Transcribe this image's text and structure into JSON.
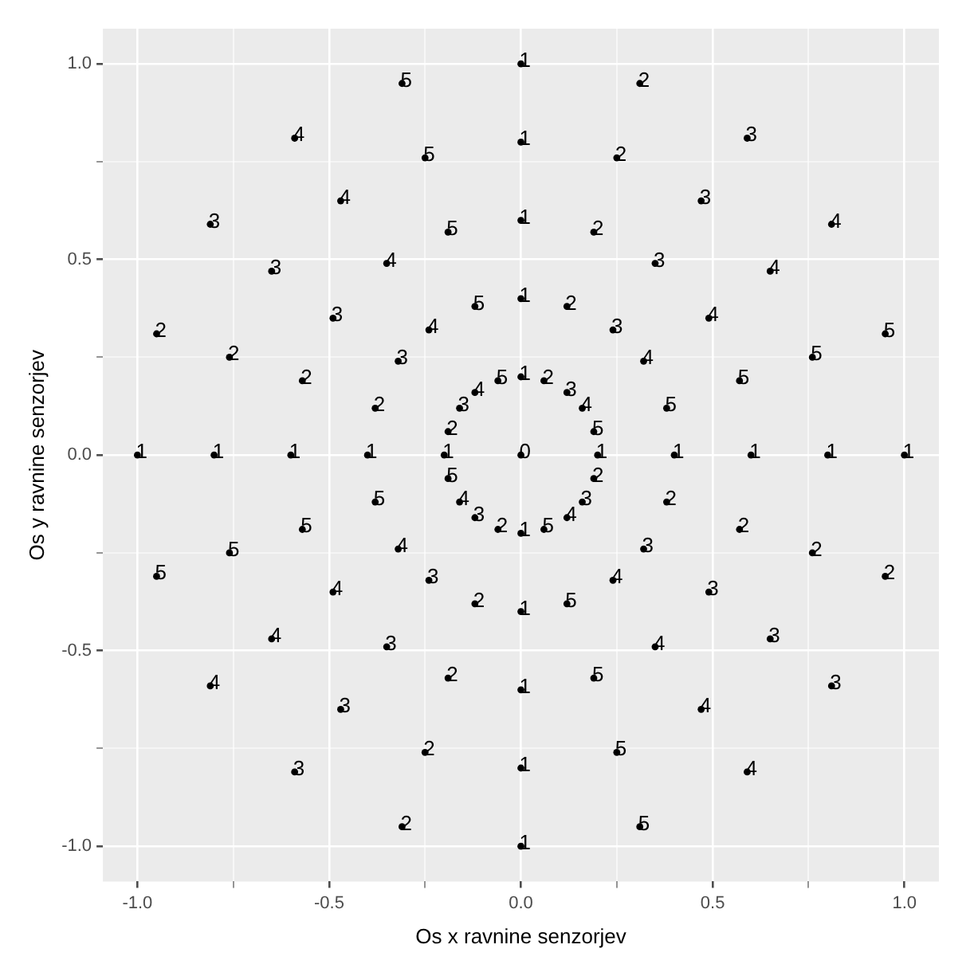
{
  "chart_data": {
    "type": "scatter",
    "xlabel": "Os x ravnine senzorjev",
    "ylabel": "Os y ravnine senzorjev",
    "marker": "circle",
    "grid": true,
    "xlim": [
      -1.09,
      1.09
    ],
    "ylim": [
      -1.09,
      1.09
    ],
    "xticks": [
      {
        "value": -1,
        "label": "-1.0"
      },
      {
        "value": -0.75,
        "label": null
      },
      -0.5,
      {
        "value": -0.25,
        "label": null
      },
      {
        "value": 0,
        "label": "0.0"
      },
      {
        "value": 0.25,
        "label": null
      },
      0.5,
      {
        "value": 0.75,
        "label": null
      },
      {
        "value": 1,
        "label": "1.0"
      }
    ],
    "yticks": [
      {
        "value": -1,
        "label": "-1.0"
      },
      {
        "value": -0.75,
        "label": null
      },
      -0.5,
      {
        "value": -0.25,
        "label": null
      },
      {
        "value": 0,
        "label": "0.0"
      },
      {
        "value": 0.25,
        "label": null
      },
      0.5,
      {
        "value": 0.75,
        "label": null
      },
      {
        "value": 1,
        "label": "1.0"
      }
    ],
    "series": [
      {
        "color": "#000000",
        "x": [
          0
        ],
        "values": [
          0
        ]
      },
      {
        "color": "#000000",
        "x": [
          0,
          0.06,
          0.12,
          0.16,
          0.19,
          0.2,
          0.19,
          0.16,
          0.12,
          0.06,
          0,
          -0.06,
          -0.12,
          -0.16,
          -0.19,
          -0.2,
          -0.19,
          -0.16,
          -0.12,
          -0.06
        ],
        "values": [
          0.2,
          0.19,
          0.16,
          0.12,
          0.06,
          0,
          -0.06,
          -0.12,
          -0.16,
          -0.19,
          -0.2,
          -0.19,
          -0.16,
          -0.12,
          -0.06,
          0,
          0.06,
          0.12,
          0.16,
          0.19
        ]
      },
      {
        "color": "#000000",
        "x": [
          0,
          0.12,
          0.24,
          0.32,
          0.38,
          0.4,
          0.38,
          0.32,
          0.24,
          0.12,
          0,
          -0.12,
          -0.24,
          -0.32,
          -0.38,
          -0.4,
          -0.38,
          -0.32,
          -0.24,
          -0.12
        ],
        "values": [
          0.4,
          0.38,
          0.32,
          0.24,
          0.12,
          0,
          -0.12,
          -0.24,
          -0.32,
          -0.38,
          -0.4,
          -0.38,
          -0.32,
          -0.24,
          -0.12,
          0,
          0.12,
          0.24,
          0.32,
          0.38
        ]
      },
      {
        "color": "#000000",
        "x": [
          0,
          0.19,
          0.35,
          0.49,
          0.57,
          0.6,
          0.57,
          0.49,
          0.35,
          0.19,
          0,
          -0.19,
          -0.35,
          -0.49,
          -0.57,
          -0.6,
          -0.57,
          -0.49,
          -0.35,
          -0.19
        ],
        "values": [
          0.6,
          0.57,
          0.49,
          0.35,
          0.19,
          0,
          -0.19,
          -0.35,
          -0.49,
          -0.57,
          -0.6,
          -0.57,
          -0.49,
          -0.35,
          -0.19,
          0,
          0.19,
          0.35,
          0.49,
          0.57
        ]
      },
      {
        "color": "#000000",
        "x": [
          0,
          0.25,
          0.47,
          0.65,
          0.76,
          0.8,
          0.76,
          0.65,
          0.47,
          0.25,
          0,
          -0.25,
          -0.47,
          -0.65,
          -0.76,
          -0.8,
          -0.76,
          -0.65,
          -0.47,
          -0.25
        ],
        "values": [
          0.8,
          0.76,
          0.65,
          0.47,
          0.25,
          0,
          -0.25,
          -0.47,
          -0.65,
          -0.76,
          -0.8,
          -0.76,
          -0.65,
          -0.47,
          -0.25,
          0,
          0.25,
          0.47,
          0.65,
          0.76
        ]
      },
      {
        "color": "#000000",
        "x": [
          0,
          0.31,
          0.59,
          0.81,
          0.95,
          1,
          0.95,
          0.81,
          0.59,
          0.31,
          0,
          -0.31,
          -0.59,
          -0.81,
          -0.95,
          -1,
          -0.95,
          -0.81,
          -0.59,
          -0.31
        ],
        "values": [
          1,
          0.95,
          0.81,
          0.59,
          0.31,
          0,
          -0.31,
          -0.59,
          -0.81,
          -0.95,
          -1,
          -0.95,
          -0.81,
          -0.59,
          -0.31,
          0,
          0.31,
          0.59,
          0.81,
          0.95
        ]
      }
    ],
    "annotations": [
      {
        "text": "0",
        "x": 0,
        "y": 0
      },
      {
        "text": "1",
        "x": 0,
        "y": 0.2
      },
      {
        "text": "2",
        "x": 0.06,
        "y": 0.19
      },
      {
        "text": "3",
        "x": 0.12,
        "y": 0.16
      },
      {
        "text": "4",
        "x": 0.16,
        "y": 0.12
      },
      {
        "text": "5",
        "x": 0.19,
        "y": 0.06
      },
      {
        "text": "1",
        "x": 0.2,
        "y": 0
      },
      {
        "text": "2",
        "x": 0.19,
        "y": -0.06
      },
      {
        "text": "3",
        "x": 0.16,
        "y": -0.12
      },
      {
        "text": "4",
        "x": 0.12,
        "y": -0.16
      },
      {
        "text": "5",
        "x": 0.06,
        "y": -0.19
      },
      {
        "text": "1",
        "x": 0,
        "y": -0.2
      },
      {
        "text": "2",
        "x": -0.06,
        "y": -0.19
      },
      {
        "text": "3",
        "x": -0.12,
        "y": -0.16
      },
      {
        "text": "4",
        "x": -0.16,
        "y": -0.12
      },
      {
        "text": "5",
        "x": -0.19,
        "y": -0.06
      },
      {
        "text": "1",
        "x": -0.2,
        "y": 0
      },
      {
        "text": "2",
        "x": -0.19,
        "y": 0.06
      },
      {
        "text": "3",
        "x": -0.16,
        "y": 0.12
      },
      {
        "text": "4",
        "x": -0.12,
        "y": 0.16
      },
      {
        "text": "5",
        "x": -0.06,
        "y": 0.19
      },
      {
        "text": "1",
        "x": 0,
        "y": 0.4
      },
      {
        "text": "2",
        "x": 0.12,
        "y": 0.38
      },
      {
        "text": "3",
        "x": 0.24,
        "y": 0.32
      },
      {
        "text": "4",
        "x": 0.32,
        "y": 0.24
      },
      {
        "text": "5",
        "x": 0.38,
        "y": 0.12
      },
      {
        "text": "1",
        "x": 0.4,
        "y": 0
      },
      {
        "text": "2",
        "x": 0.38,
        "y": -0.12
      },
      {
        "text": "3",
        "x": 0.32,
        "y": -0.24
      },
      {
        "text": "4",
        "x": 0.24,
        "y": -0.32
      },
      {
        "text": "5",
        "x": 0.12,
        "y": -0.38
      },
      {
        "text": "1",
        "x": 0,
        "y": -0.4
      },
      {
        "text": "2",
        "x": -0.12,
        "y": -0.38
      },
      {
        "text": "3",
        "x": -0.24,
        "y": -0.32
      },
      {
        "text": "4",
        "x": -0.32,
        "y": -0.24
      },
      {
        "text": "5",
        "x": -0.38,
        "y": -0.12
      },
      {
        "text": "1",
        "x": -0.4,
        "y": 0
      },
      {
        "text": "2",
        "x": -0.38,
        "y": 0.12
      },
      {
        "text": "3",
        "x": -0.32,
        "y": 0.24
      },
      {
        "text": "4",
        "x": -0.24,
        "y": 0.32
      },
      {
        "text": "5",
        "x": -0.12,
        "y": 0.38
      },
      {
        "text": "1",
        "x": 0,
        "y": 0.6
      },
      {
        "text": "2",
        "x": 0.19,
        "y": 0.57
      },
      {
        "text": "3",
        "x": 0.35,
        "y": 0.49
      },
      {
        "text": "4",
        "x": 0.49,
        "y": 0.35
      },
      {
        "text": "5",
        "x": 0.57,
        "y": 0.19
      },
      {
        "text": "1",
        "x": 0.6,
        "y": 0
      },
      {
        "text": "2",
        "x": 0.57,
        "y": -0.19
      },
      {
        "text": "3",
        "x": 0.49,
        "y": -0.35
      },
      {
        "text": "4",
        "x": 0.35,
        "y": -0.49
      },
      {
        "text": "5",
        "x": 0.19,
        "y": -0.57
      },
      {
        "text": "1",
        "x": 0,
        "y": -0.6
      },
      {
        "text": "2",
        "x": -0.19,
        "y": -0.57
      },
      {
        "text": "3",
        "x": -0.35,
        "y": -0.49
      },
      {
        "text": "4",
        "x": -0.49,
        "y": -0.35
      },
      {
        "text": "5",
        "x": -0.57,
        "y": -0.19
      },
      {
        "text": "1",
        "x": -0.6,
        "y": 0
      },
      {
        "text": "2",
        "x": -0.57,
        "y": 0.19
      },
      {
        "text": "3",
        "x": -0.49,
        "y": 0.35
      },
      {
        "text": "4",
        "x": -0.35,
        "y": 0.49
      },
      {
        "text": "5",
        "x": -0.19,
        "y": 0.57
      },
      {
        "text": "1",
        "x": 0,
        "y": 0.8
      },
      {
        "text": "2",
        "x": 0.25,
        "y": 0.76
      },
      {
        "text": "3",
        "x": 0.47,
        "y": 0.65
      },
      {
        "text": "4",
        "x": 0.65,
        "y": 0.47
      },
      {
        "text": "5",
        "x": 0.76,
        "y": 0.25
      },
      {
        "text": "1",
        "x": 0.8,
        "y": 0
      },
      {
        "text": "2",
        "x": 0.76,
        "y": -0.25
      },
      {
        "text": "3",
        "x": 0.65,
        "y": -0.47
      },
      {
        "text": "4",
        "x": 0.47,
        "y": -0.65
      },
      {
        "text": "5",
        "x": 0.25,
        "y": -0.76
      },
      {
        "text": "1",
        "x": 0,
        "y": -0.8
      },
      {
        "text": "2",
        "x": -0.25,
        "y": -0.76
      },
      {
        "text": "3",
        "x": -0.47,
        "y": -0.65
      },
      {
        "text": "4",
        "x": -0.65,
        "y": -0.47
      },
      {
        "text": "5",
        "x": -0.76,
        "y": -0.25
      },
      {
        "text": "1",
        "x": -0.8,
        "y": 0
      },
      {
        "text": "2",
        "x": -0.76,
        "y": 0.25
      },
      {
        "text": "3",
        "x": -0.65,
        "y": 0.47
      },
      {
        "text": "4",
        "x": -0.47,
        "y": 0.65
      },
      {
        "text": "5",
        "x": -0.25,
        "y": 0.76
      },
      {
        "text": "1",
        "x": 0,
        "y": 1
      },
      {
        "text": "2",
        "x": 0.31,
        "y": 0.95
      },
      {
        "text": "3",
        "x": 0.59,
        "y": 0.81
      },
      {
        "text": "4",
        "x": 0.81,
        "y": 0.59
      },
      {
        "text": "5",
        "x": 0.95,
        "y": 0.31
      },
      {
        "text": "1",
        "x": 1,
        "y": 0
      },
      {
        "text": "2",
        "x": 0.95,
        "y": -0.31
      },
      {
        "text": "3",
        "x": 0.81,
        "y": -0.59
      },
      {
        "text": "4",
        "x": 0.59,
        "y": -0.81
      },
      {
        "text": "5",
        "x": 0.31,
        "y": -0.95
      },
      {
        "text": "1",
        "x": 0,
        "y": -1
      },
      {
        "text": "2",
        "x": -0.31,
        "y": -0.95
      },
      {
        "text": "3",
        "x": -0.59,
        "y": -0.81
      },
      {
        "text": "4",
        "x": -0.81,
        "y": -0.59
      },
      {
        "text": "5",
        "x": -0.95,
        "y": -0.31
      },
      {
        "text": "1",
        "x": -1,
        "y": 0
      },
      {
        "text": "2",
        "x": -0.95,
        "y": 0.31
      },
      {
        "text": "3",
        "x": -0.81,
        "y": 0.59
      },
      {
        "text": "4",
        "x": -0.59,
        "y": 0.81
      },
      {
        "text": "5",
        "x": -0.31,
        "y": 0.95
      }
    ]
  }
}
